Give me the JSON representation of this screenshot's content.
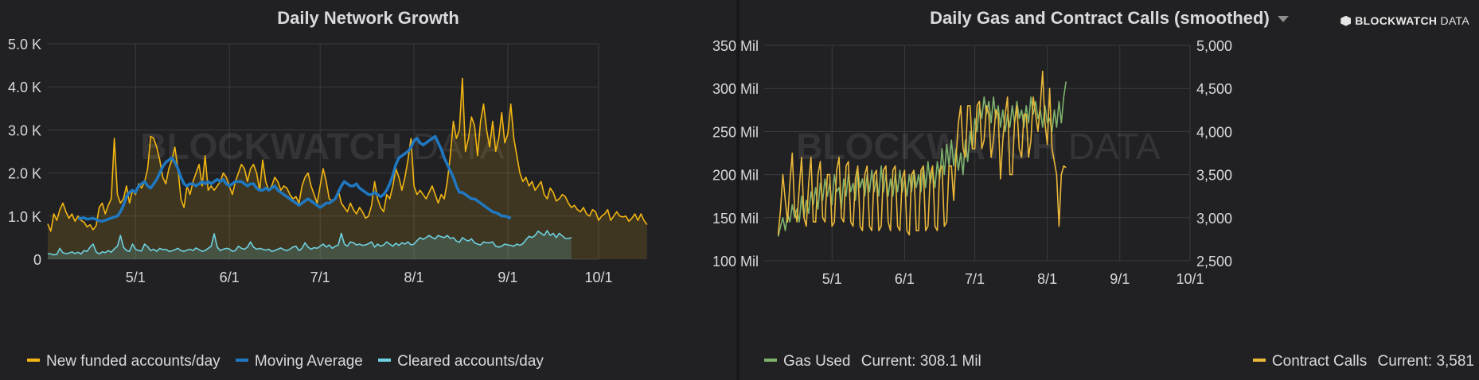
{
  "watermark": {
    "brand_bold": "BLOCKWATCH",
    "brand_thin": "DATA"
  },
  "chart_data": [
    {
      "type": "line",
      "title": "Daily Network Growth",
      "ylim": [
        0,
        5000
      ],
      "y_ticks": [
        0,
        1000,
        2000,
        3000,
        4000,
        5000
      ],
      "y_tick_labels": [
        "0",
        "1.0 K",
        "2.0 K",
        "3.0 K",
        "4.0 K",
        "5.0 K"
      ],
      "x_tick_labels": [
        "5/1",
        "6/1",
        "7/1",
        "8/1",
        "9/1",
        "10/1"
      ],
      "x_ticks": [
        "2019-05-01",
        "2019-06-01",
        "2019-07-01",
        "2019-08-01",
        "2019-09-01",
        "2019-10-01"
      ],
      "x_range": [
        "2019-04-02",
        "2019-10-01"
      ],
      "grid": true,
      "legend_position": "bottom-left",
      "series": [
        {
          "name": "New funded accounts/day",
          "color": "#f2b511",
          "fill": true,
          "x_start": "2019-04-02",
          "values": [
            820,
            650,
            1050,
            900,
            1150,
            1300,
            1100,
            950,
            1050,
            880,
            1000,
            900,
            860,
            750,
            800,
            680,
            780,
            1200,
            1300,
            1050,
            1250,
            1400,
            2800,
            1500,
            1300,
            1400,
            1700,
            1300,
            1600,
            1500,
            1750,
            1650,
            1800,
            2100,
            2850,
            2800,
            2600,
            2300,
            1900,
            1750,
            2100,
            2300,
            2600,
            2100,
            1400,
            1200,
            1700,
            1500,
            1800,
            2000,
            2200,
            1700,
            2400,
            1600,
            1700,
            1600,
            1700,
            1800,
            2000,
            1900,
            1700,
            1500,
            1800,
            2000,
            2200,
            2100,
            1800,
            2100,
            2200,
            2000,
            1600,
            2300,
            1800,
            1600,
            1700,
            1900,
            1800,
            1600,
            1700,
            1650,
            1500,
            1400,
            1450,
            1300,
            1700,
            1900,
            2000,
            1700,
            1500,
            1300,
            1700,
            2100,
            1800,
            1400,
            1350,
            1400,
            1600,
            1300,
            1200,
            1100,
            1300,
            1150,
            1050,
            1200,
            1100,
            950,
            1000,
            1250,
            1800,
            1400,
            1200,
            1100,
            1500,
            1400,
            1700,
            2100,
            1900,
            1600,
            1900,
            2300,
            2800,
            1700,
            1500,
            1600,
            1500,
            1400,
            1550,
            1700,
            1500,
            1300,
            1500,
            1400,
            1800,
            2400,
            3200,
            2800,
            3000,
            4200,
            2500,
            2800,
            3300,
            3100,
            2400,
            3200,
            3600,
            3000,
            2600,
            3200,
            2500,
            2800,
            3400,
            2700,
            2900,
            3600,
            2800,
            2400,
            2000,
            1800,
            1900,
            1700,
            1800,
            1600,
            1700,
            1800,
            1500,
            1400,
            1650,
            1550,
            1350,
            1400,
            1500,
            1450,
            1300,
            1200,
            1250,
            1150,
            1100,
            1200,
            1050,
            1000,
            1150,
            1100,
            900,
            1000,
            1050,
            1150,
            900,
            1000,
            1100,
            1000,
            980,
            1000,
            880,
            950,
            1050,
            900,
            1050,
            900,
            800
          ]
        },
        {
          "name": "Moving Average",
          "color": "#1f78c1",
          "fill": false,
          "x_start": "2019-04-12",
          "values": [
            940,
            950,
            960,
            930,
            940,
            950,
            920,
            890,
            880,
            900,
            930,
            950,
            980,
            1000,
            1100,
            1250,
            1450,
            1550,
            1600,
            1550,
            1700,
            1750,
            1800,
            1700,
            1650,
            1750,
            1850,
            2000,
            2150,
            2250,
            2300,
            2350,
            2250,
            2100,
            1900,
            1750,
            1700,
            1750,
            1750,
            1700,
            1750,
            1800,
            1750,
            1800,
            1750,
            1800,
            1850,
            1800,
            1850,
            1750,
            1700,
            1750,
            1800,
            1800,
            1800,
            1750,
            1700,
            1750,
            1750,
            1650,
            1600,
            1600,
            1650,
            1600,
            1650,
            1700,
            1600,
            1550,
            1500,
            1450,
            1400,
            1350,
            1300,
            1250,
            1300,
            1350,
            1400,
            1350,
            1300,
            1250,
            1200,
            1250,
            1300,
            1300,
            1350,
            1400,
            1550,
            1700,
            1800,
            1750,
            1700,
            1700,
            1750,
            1650,
            1600,
            1550,
            1500,
            1500,
            1550,
            1500,
            1450,
            1500,
            1600,
            1750,
            1950,
            2200,
            2350,
            2400,
            2450,
            2500,
            2600,
            2750,
            2800,
            2700,
            2650,
            2700,
            2750,
            2800,
            2850,
            2700,
            2550,
            2350,
            2200,
            2050,
            1900,
            1700,
            1550,
            1550,
            1500,
            1450,
            1400,
            1400,
            1350,
            1300,
            1250,
            1200,
            1150,
            1100,
            1080,
            1050,
            1000,
            1000,
            980,
            950
          ]
        },
        {
          "name": "Cleared accounts/day",
          "color": "#6ed0e0",
          "fill": true,
          "x_start": "2019-04-02",
          "values": [
            130,
            120,
            100,
            110,
            250,
            150,
            130,
            140,
            170,
            130,
            160,
            120,
            200,
            180,
            280,
            350,
            170,
            120,
            170,
            150,
            200,
            160,
            240,
            300,
            550,
            280,
            200,
            180,
            350,
            230,
            200,
            190,
            350,
            290,
            200,
            230,
            180,
            250,
            220,
            230,
            180,
            190,
            220,
            250,
            200,
            180,
            210,
            230,
            200,
            260,
            220,
            180,
            200,
            250,
            300,
            590,
            280,
            200,
            230,
            250,
            240,
            180,
            200,
            300,
            250,
            230,
            280,
            400,
            280,
            230,
            250,
            230,
            210,
            230,
            180,
            200,
            230,
            260,
            220,
            200,
            230,
            280,
            300,
            200,
            250,
            380,
            280,
            230,
            270,
            250,
            300,
            350,
            280,
            330,
            250,
            300,
            330,
            600,
            350,
            300,
            400,
            380,
            330,
            350,
            320,
            330,
            360,
            400,
            280,
            350,
            300,
            330,
            400,
            350,
            300,
            370,
            320,
            380,
            350,
            400,
            330,
            350,
            430,
            500,
            460,
            500,
            550,
            500,
            470,
            550,
            520,
            500,
            550,
            480,
            500,
            420,
            390,
            500,
            450,
            420,
            470,
            380,
            350,
            330,
            400,
            380,
            380,
            400,
            300,
            280,
            300,
            350,
            330,
            320,
            300,
            350,
            320,
            360,
            450,
            530,
            500,
            550,
            650,
            600,
            550,
            660,
            550,
            600,
            500,
            600,
            540,
            480,
            480,
            500
          ]
        }
      ]
    },
    {
      "type": "line",
      "title": "Daily Gas and Contract Calls (smoothed)",
      "x_tick_labels": [
        "5/1",
        "6/1",
        "7/1",
        "8/1",
        "9/1",
        "10/1"
      ],
      "x_ticks": [
        "2019-05-01",
        "2019-06-01",
        "2019-07-01",
        "2019-08-01",
        "2019-09-01",
        "2019-10-01"
      ],
      "x_range": [
        "2019-04-02",
        "2019-10-01"
      ],
      "grid": true,
      "legend_position": "bottom",
      "y_left": {
        "ylim": [
          100,
          350
        ],
        "unit": "Mil",
        "ticks": [
          100,
          150,
          200,
          250,
          300,
          350
        ],
        "tick_labels": [
          "100 Mil",
          "150 Mil",
          "200 Mil",
          "250 Mil",
          "300 Mil",
          "350 Mil"
        ]
      },
      "y_right": {
        "ylim": [
          2500,
          5000
        ],
        "ticks": [
          2500,
          3000,
          3500,
          4000,
          4500,
          5000
        ],
        "tick_labels": [
          "2,500",
          "3,000",
          "3,500",
          "4,000",
          "4,500",
          "5,000"
        ]
      },
      "series": [
        {
          "name": "Gas Used",
          "axis": "left",
          "color": "#7eb26d",
          "legend_current_label": "Current:",
          "legend_current_value": "308.1 Mil",
          "x_start": "2019-04-08",
          "values": [
            128,
            140,
            150,
            135,
            155,
            145,
            165,
            150,
            160,
            145,
            175,
            150,
            170,
            155,
            180,
            165,
            185,
            160,
            190,
            170,
            195,
            175,
            190,
            165,
            200,
            180,
            185,
            160,
            195,
            175,
            200,
            180,
            190,
            170,
            205,
            185,
            195,
            175,
            200,
            180,
            205,
            180,
            195,
            175,
            210,
            180,
            200,
            175,
            195,
            175,
            200,
            180,
            205,
            180,
            195,
            175,
            200,
            180,
            205,
            185,
            200,
            180,
            210,
            185,
            215,
            190,
            205,
            185,
            215,
            195,
            230,
            200,
            235,
            210,
            240,
            210,
            230,
            205,
            225,
            200,
            240,
            215,
            250,
            230,
            265,
            250,
            280,
            265,
            290,
            270,
            285,
            260,
            290,
            265,
            280,
            255,
            275,
            250,
            270,
            255,
            280,
            260,
            285,
            265,
            275,
            255,
            280,
            260,
            290,
            270,
            285,
            265,
            275,
            255,
            280,
            260,
            265,
            250,
            275,
            255,
            285,
            260,
            290,
            308
          ]
        },
        {
          "name": "Contract Calls",
          "axis": "right",
          "color": "#eab839",
          "legend_current_label": "Current:",
          "legend_current_value": "3,581",
          "x_start": "2019-04-08",
          "values": [
            2800,
            3100,
            3500,
            3200,
            2950,
            3400,
            3750,
            3100,
            2950,
            3350,
            3700,
            3000,
            2900,
            3400,
            3700,
            2950,
            2950,
            3500,
            3650,
            3000,
            2950,
            3500,
            3500,
            2900,
            2950,
            3550,
            3700,
            3000,
            2950,
            3600,
            3650,
            2950,
            2900,
            3450,
            3600,
            2900,
            2850,
            3500,
            3600,
            2900,
            2850,
            3500,
            3550,
            2850,
            2900,
            3550,
            3600,
            2950,
            2850,
            3550,
            3600,
            2900,
            2850,
            3450,
            3550,
            2850,
            2800,
            3500,
            3550,
            2850,
            2850,
            3550,
            3600,
            2850,
            2900,
            3500,
            3600,
            2900,
            2850,
            3550,
            3600,
            2900,
            2950,
            3600,
            3600,
            3200,
            3700,
            4100,
            4300,
            3800,
            3700,
            4300,
            4300,
            3800,
            3800,
            4300,
            4350,
            3800,
            3900,
            4300,
            4200,
            3700,
            3900,
            4250,
            4200,
            3450,
            3900,
            4200,
            4400,
            3500,
            3500,
            4100,
            4300,
            3800,
            3700,
            4200,
            4200,
            3700,
            3900,
            4400,
            4200,
            4000,
            4300,
            4700,
            4100,
            3850,
            4500,
            3800,
            3650,
            3500,
            2900,
            3500,
            3600,
            3581
          ]
        }
      ]
    }
  ]
}
